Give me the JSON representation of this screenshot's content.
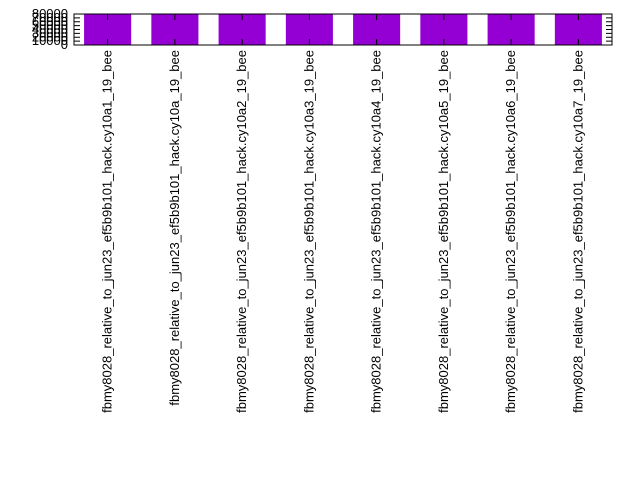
{
  "chart_data": {
    "type": "bar",
    "title": "",
    "xlabel": "",
    "ylabel": "",
    "ylim": [
      0,
      80000
    ],
    "yticks": [
      "0",
      "10000",
      "20000",
      "30000",
      "40000",
      "50000",
      "60000",
      "70000",
      "80000"
    ],
    "grid": false,
    "legend": "none",
    "bar_color": "#9400D3",
    "categories": [
      "fbmy8028_relative_to_jun23_ef5b9b101_hack.cy10a1_19_bee",
      "fbmy8028_relative_to_jun23_ef5b9b101_hack.cy10a_19_bee",
      "fbmy8028_relative_to_jun23_ef5b9b101_hack.cy10a2_19_bee",
      "fbmy8028_relative_to_jun23_ef5b9b101_hack.cy10a3_19_bee",
      "fbmy8028_relative_to_jun23_ef5b9b101_hack.cy10a4_19_bee",
      "fbmy8028_relative_to_jun23_ef5b9b101_hack.cy10a5_19_bee",
      "fbmy8028_relative_to_jun23_ef5b9b101_hack.cy10a6_19_bee",
      "fbmy8028_relative_to_jun23_ef5b9b101_hack.cy10a7_19_bee"
    ],
    "values": [
      80000,
      80000,
      80000,
      80000,
      80000,
      80000,
      80000,
      80000
    ]
  }
}
